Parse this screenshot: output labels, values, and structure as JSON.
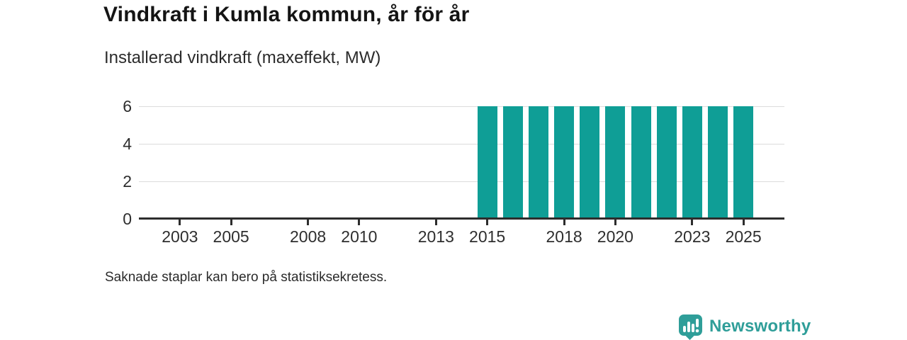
{
  "header": {
    "title": "Vindkraft i Kumla kommun, år för år",
    "subtitle": "Installerad vindkraft (maxeffekt, MW)"
  },
  "chart_data": {
    "type": "bar",
    "title": "Vindkraft i Kumla kommun, år för år",
    "subtitle": "Installerad vindkraft (maxeffekt, MW)",
    "categories": [
      2015,
      2016,
      2017,
      2018,
      2019,
      2020,
      2021,
      2022,
      2023,
      2024,
      2025
    ],
    "values": [
      6,
      6,
      6,
      6,
      6,
      6,
      6,
      6,
      6,
      6,
      6
    ],
    "xlabel": "",
    "ylabel": "",
    "unit": "MW",
    "xlim": [
      2001.4,
      2026.6
    ],
    "ylim": [
      0,
      6
    ],
    "yticks": [
      0,
      2,
      4,
      6
    ],
    "xticks": [
      2003,
      2005,
      2008,
      2010,
      2013,
      2015,
      2018,
      2020,
      2023,
      2025
    ],
    "grid": true,
    "legend_position": "none",
    "bar_color": "#0f9e96",
    "axis_color": "#2d2d2d",
    "gridline_color": "#dcdcdc"
  },
  "footnote": {
    "text": "Saknade staplar kan bero på statistiksekretess."
  },
  "branding": {
    "name": "Newsworthy",
    "color": "#2f9e99"
  }
}
